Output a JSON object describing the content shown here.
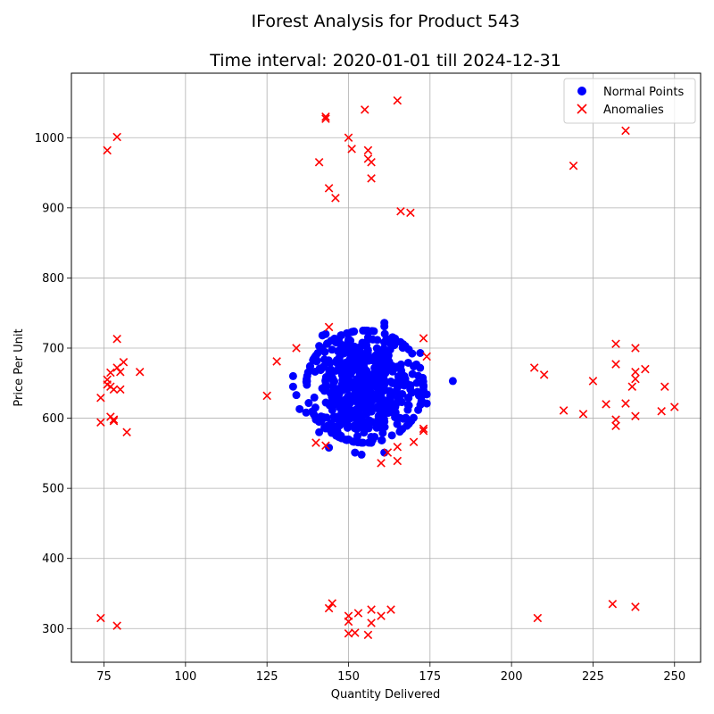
{
  "chart_data": {
    "type": "scatter",
    "title": "IForest Analysis for Product 543",
    "subtitle": "Time interval: 2020-01-01 till 2024-12-31",
    "xlabel": "Quantity Delivered",
    "ylabel": "Price Per Unit",
    "xlim": [
      65,
      258
    ],
    "ylim": [
      252,
      1092
    ],
    "xticks": [
      75,
      100,
      125,
      150,
      175,
      200,
      225,
      250
    ],
    "yticks": [
      300,
      400,
      500,
      600,
      700,
      800,
      900,
      1000
    ],
    "grid": true,
    "legend_position": "top-right",
    "series": [
      {
        "name": "Normal Points",
        "marker": "circle",
        "color": "#0000ff",
        "cluster_summary": {
          "center": [
            155,
            645
          ],
          "count": 600,
          "x_spread": 9,
          "y_spread": 40
        },
        "points": [
          [
            182,
            653
          ],
          [
            161,
            736
          ],
          [
            161,
            731
          ],
          [
            143,
            720
          ],
          [
            142,
            718
          ],
          [
            133,
            660
          ],
          [
            133,
            645
          ],
          [
            134,
            633
          ],
          [
            135,
            613
          ],
          [
            137,
            608
          ],
          [
            140,
            598
          ],
          [
            141,
            580
          ],
          [
            144,
            558
          ],
          [
            154,
            548
          ],
          [
            152,
            551
          ],
          [
            161,
            551
          ],
          [
            174,
            634
          ],
          [
            174,
            621
          ],
          [
            172,
            693
          ],
          [
            170,
            674
          ],
          [
            141,
            703
          ],
          [
            155,
            725
          ],
          [
            157,
            565
          ],
          [
            147,
            575
          ]
        ]
      },
      {
        "name": "Anomalies",
        "marker": "x",
        "color": "#ff0000",
        "points": [
          [
            165,
            1053
          ],
          [
            155,
            1040
          ],
          [
            143,
            1030
          ],
          [
            143,
            1027
          ],
          [
            150,
            1000
          ],
          [
            151,
            984
          ],
          [
            156,
            982
          ],
          [
            156,
            970
          ],
          [
            157,
            965
          ],
          [
            141,
            965
          ],
          [
            157,
            942
          ],
          [
            144,
            928
          ],
          [
            146,
            914
          ],
          [
            166,
            895
          ],
          [
            169,
            893
          ],
          [
            79,
            1001
          ],
          [
            76,
            982
          ],
          [
            235,
            1010
          ],
          [
            219,
            960
          ],
          [
            144,
            730
          ],
          [
            134,
            700
          ],
          [
            173,
            714
          ],
          [
            174,
            688
          ],
          [
            128,
            681
          ],
          [
            125,
            632
          ],
          [
            79,
            713
          ],
          [
            81,
            680
          ],
          [
            86,
            666
          ],
          [
            80,
            666
          ],
          [
            79,
            672
          ],
          [
            77,
            665
          ],
          [
            76,
            655
          ],
          [
            76,
            648
          ],
          [
            77,
            645
          ],
          [
            78,
            641
          ],
          [
            80,
            641
          ],
          [
            74,
            629
          ],
          [
            77,
            602
          ],
          [
            78,
            598
          ],
          [
            78,
            596
          ],
          [
            74,
            594
          ],
          [
            82,
            580
          ],
          [
            207,
            672
          ],
          [
            210,
            662
          ],
          [
            216,
            611
          ],
          [
            222,
            606
          ],
          [
            225,
            653
          ],
          [
            229,
            620
          ],
          [
            232,
            706
          ],
          [
            232,
            677
          ],
          [
            232,
            598
          ],
          [
            232,
            589
          ],
          [
            235,
            621
          ],
          [
            237,
            645
          ],
          [
            238,
            700
          ],
          [
            238,
            666
          ],
          [
            238,
            656
          ],
          [
            238,
            603
          ],
          [
            241,
            670
          ],
          [
            246,
            610
          ],
          [
            247,
            645
          ],
          [
            250,
            616
          ],
          [
            140,
            565
          ],
          [
            143,
            561
          ],
          [
            162,
            551
          ],
          [
            165,
            559
          ],
          [
            160,
            536
          ],
          [
            165,
            539
          ],
          [
            170,
            566
          ],
          [
            173,
            585
          ],
          [
            173,
            582
          ],
          [
            74,
            315
          ],
          [
            79,
            304
          ],
          [
            145,
            336
          ],
          [
            144,
            329
          ],
          [
            153,
            322
          ],
          [
            150,
            318
          ],
          [
            157,
            327
          ],
          [
            160,
            318
          ],
          [
            163,
            327
          ],
          [
            150,
            310
          ],
          [
            157,
            308
          ],
          [
            150,
            293
          ],
          [
            152,
            294
          ],
          [
            156,
            291
          ],
          [
            208,
            315
          ],
          [
            231,
            335
          ],
          [
            238,
            331
          ]
        ]
      }
    ]
  }
}
